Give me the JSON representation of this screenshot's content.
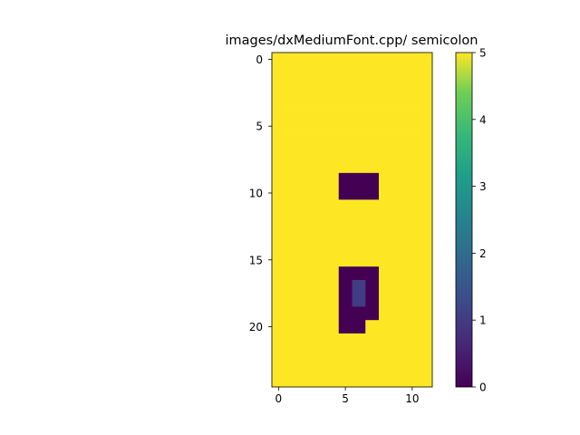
{
  "chart_data": {
    "type": "heatmap",
    "title": "images/dxMediumFont.cpp/ semicolon",
    "xlabel": "",
    "ylabel": "",
    "columns": 12,
    "rows": 25,
    "xlim": [
      -0.5,
      11.5
    ],
    "ylim": [
      24.5,
      -0.5
    ],
    "x_ticks": [
      0,
      5,
      10
    ],
    "y_ticks": [
      0,
      5,
      10,
      15,
      20
    ],
    "colorbar": {
      "min": 0,
      "max": 5,
      "ticks": [
        0,
        1,
        2,
        3,
        4,
        5
      ],
      "colormap": "viridis"
    },
    "default_value": 5,
    "cells": [
      {
        "row": 9,
        "col": 5,
        "value": 0
      },
      {
        "row": 9,
        "col": 6,
        "value": 0
      },
      {
        "row": 9,
        "col": 7,
        "value": 0
      },
      {
        "row": 10,
        "col": 5,
        "value": 0
      },
      {
        "row": 10,
        "col": 6,
        "value": 0
      },
      {
        "row": 10,
        "col": 7,
        "value": 0
      },
      {
        "row": 16,
        "col": 5,
        "value": 0
      },
      {
        "row": 16,
        "col": 6,
        "value": 0
      },
      {
        "row": 16,
        "col": 7,
        "value": 0
      },
      {
        "row": 17,
        "col": 5,
        "value": 0
      },
      {
        "row": 17,
        "col": 6,
        "value": 1
      },
      {
        "row": 17,
        "col": 7,
        "value": 0
      },
      {
        "row": 18,
        "col": 5,
        "value": 0
      },
      {
        "row": 18,
        "col": 6,
        "value": 1
      },
      {
        "row": 18,
        "col": 7,
        "value": 0
      },
      {
        "row": 19,
        "col": 5,
        "value": 0
      },
      {
        "row": 19,
        "col": 6,
        "value": 0
      },
      {
        "row": 19,
        "col": 7,
        "value": 0
      },
      {
        "row": 20,
        "col": 5,
        "value": 0
      },
      {
        "row": 20,
        "col": 6,
        "value": 0
      }
    ]
  }
}
